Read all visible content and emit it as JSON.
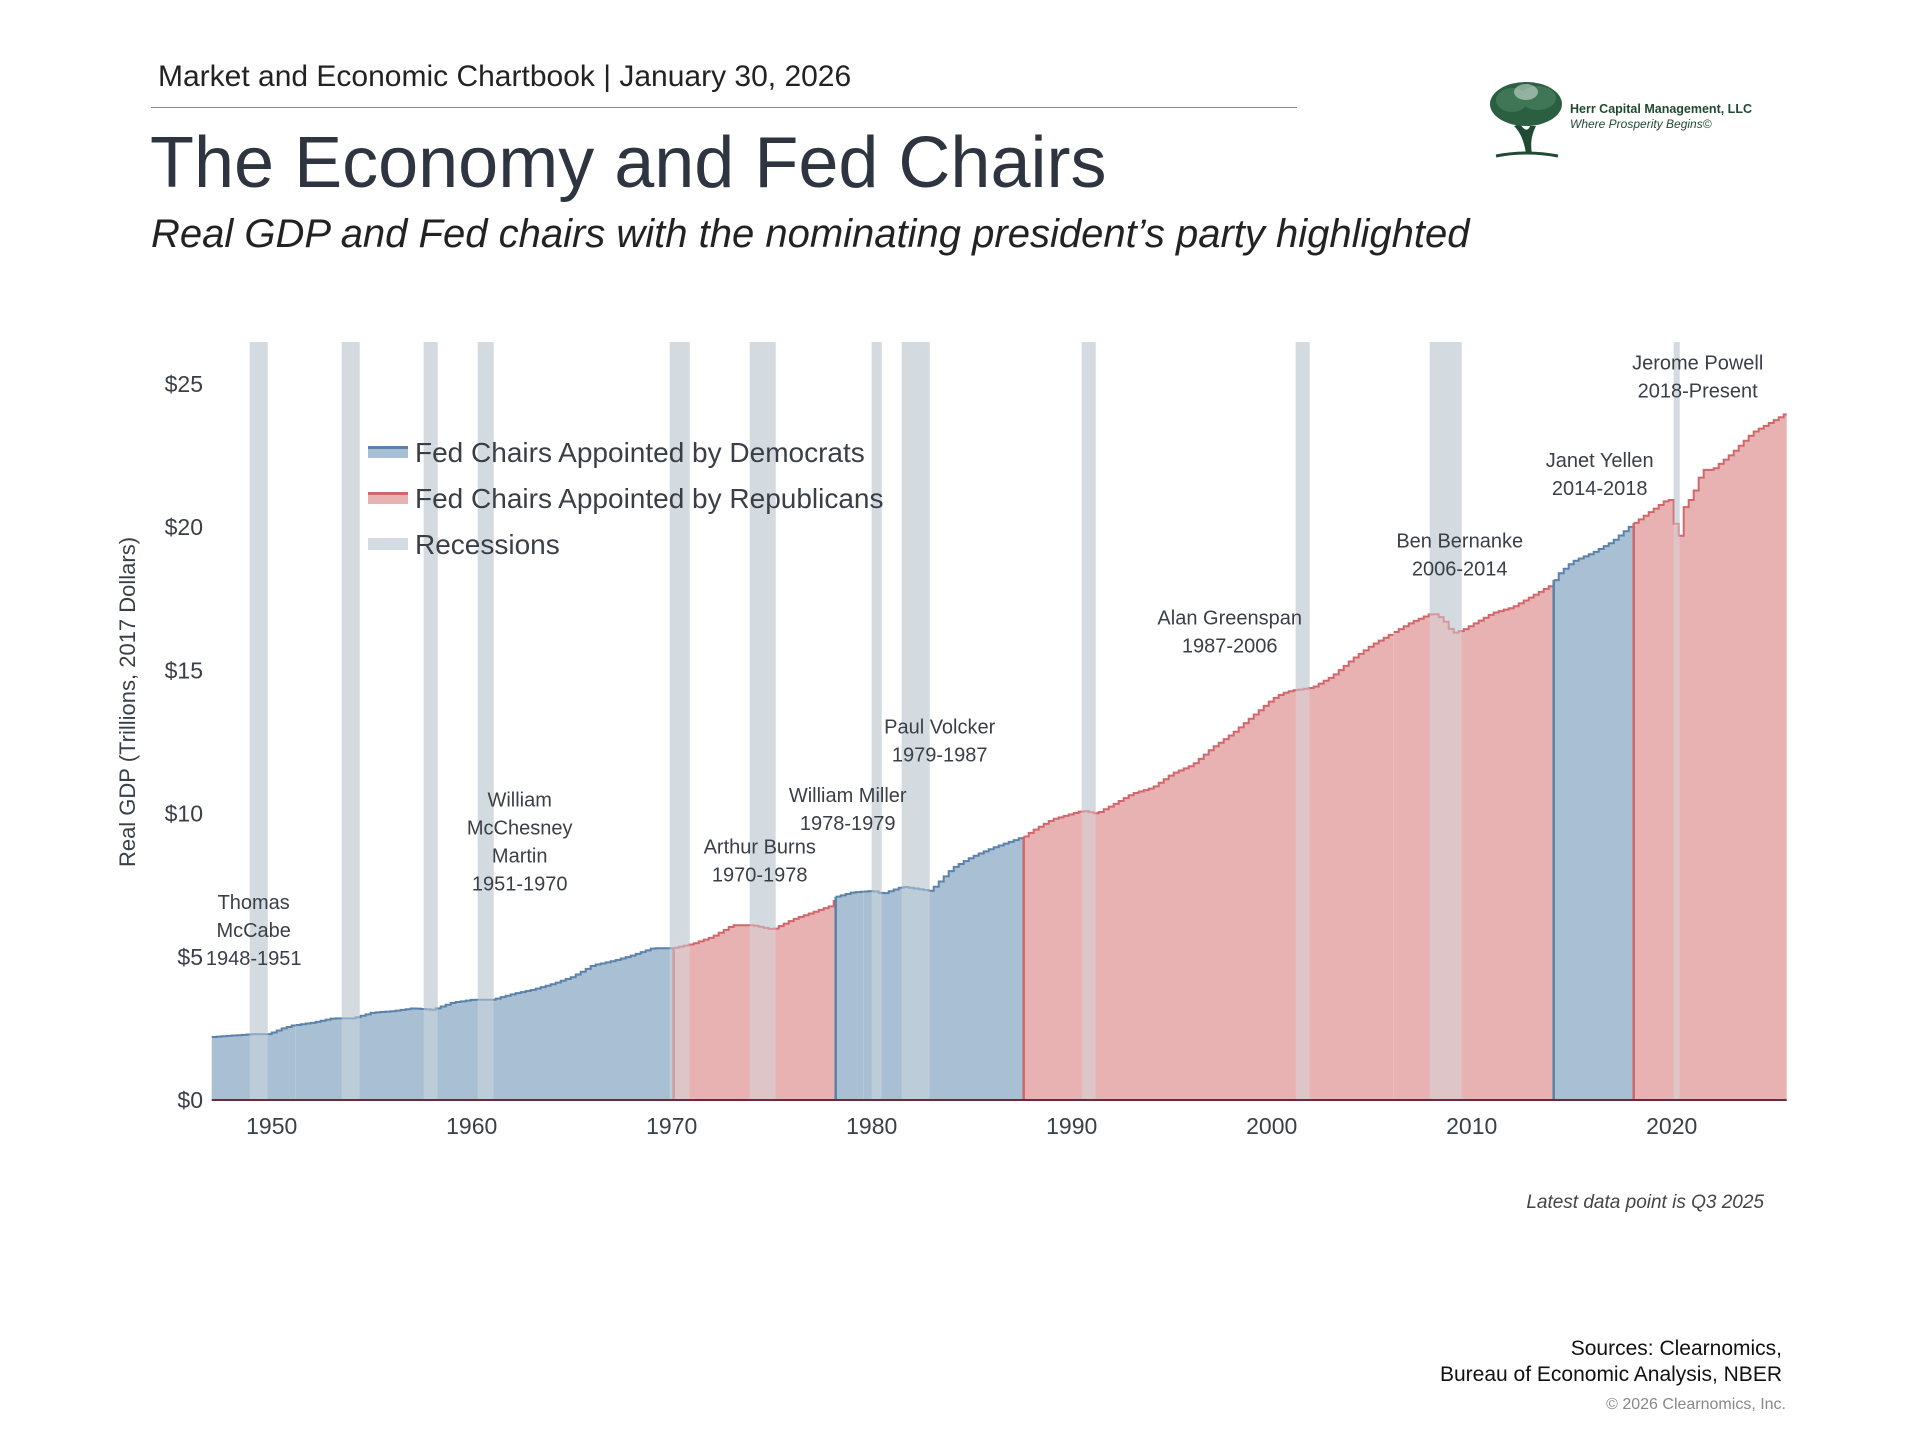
{
  "header": {
    "kicker": "Market and Economic Chartbook | January 30, 2026",
    "title": "The Economy and Fed Chairs",
    "subtitle": "Real GDP and Fed chairs with the nominating president’s party highlighted"
  },
  "logo": {
    "name": "Herr Capital Management, LLC",
    "tagline": "Where Prosperity Begins©",
    "icon": "tree-icon"
  },
  "chart_data": {
    "type": "area",
    "ylabel": "Real GDP (Trillions, 2017 Dollars)",
    "xlim": [
      1947,
      2025.75
    ],
    "ylim": [
      0,
      26
    ],
    "y_ticks": [
      0,
      5,
      10,
      15,
      20,
      25
    ],
    "y_tick_labels": [
      "$0",
      "$5",
      "$10",
      "$15",
      "$20",
      "$25"
    ],
    "x_ticks": [
      1950,
      1960,
      1970,
      1980,
      1990,
      2000,
      2010,
      2020
    ],
    "x_tick_labels": [
      "1950",
      "1960",
      "1970",
      "1980",
      "1990",
      "2000",
      "2010",
      "2020"
    ],
    "grid": false,
    "legend": {
      "placement": "top-left",
      "entries": [
        {
          "label": "Fed Chairs Appointed by Democrats",
          "party": "D"
        },
        {
          "label": "Fed Chairs Appointed by Republicans",
          "party": "R"
        },
        {
          "label": "Recessions",
          "party": "recession"
        }
      ]
    },
    "colors": {
      "D_fill": "#a9c0d4",
      "D_line": "#5a82aa",
      "R_fill": "#e8b2b2",
      "R_line": "#d0676b",
      "recession": "#d3dbe0"
    },
    "gdp": [
      [
        1947,
        2.2
      ],
      [
        1948,
        2.25
      ],
      [
        1949,
        2.3
      ],
      [
        1949.8,
        2.3
      ],
      [
        1950.5,
        2.5
      ],
      [
        1951,
        2.6
      ],
      [
        1952,
        2.7
      ],
      [
        1953,
        2.85
      ],
      [
        1954,
        2.85
      ],
      [
        1955,
        3.05
      ],
      [
        1956,
        3.1
      ],
      [
        1957,
        3.2
      ],
      [
        1958,
        3.15
      ],
      [
        1959,
        3.4
      ],
      [
        1960,
        3.5
      ],
      [
        1961,
        3.5
      ],
      [
        1962,
        3.7
      ],
      [
        1963,
        3.85
      ],
      [
        1964,
        4.05
      ],
      [
        1965,
        4.3
      ],
      [
        1966,
        4.7
      ],
      [
        1967,
        4.85
      ],
      [
        1968,
        5.05
      ],
      [
        1969,
        5.3
      ],
      [
        1970,
        5.3
      ],
      [
        1971,
        5.45
      ],
      [
        1972,
        5.7
      ],
      [
        1973,
        6.1
      ],
      [
        1974,
        6.1
      ],
      [
        1975,
        5.95
      ],
      [
        1976,
        6.3
      ],
      [
        1977,
        6.55
      ],
      [
        1978,
        6.8
      ],
      [
        1978.2,
        7.1
      ],
      [
        1979,
        7.25
      ],
      [
        1980,
        7.3
      ],
      [
        1980.5,
        7.2
      ],
      [
        1981.5,
        7.45
      ],
      [
        1982.9,
        7.3
      ],
      [
        1984,
        8.1
      ],
      [
        1985,
        8.5
      ],
      [
        1986,
        8.8
      ],
      [
        1987.6,
        9.2
      ],
      [
        1988,
        9.4
      ],
      [
        1989,
        9.8
      ],
      [
        1990.5,
        10.1
      ],
      [
        1991.2,
        10.0
      ],
      [
        1992,
        10.3
      ],
      [
        1993,
        10.7
      ],
      [
        1994,
        10.9
      ],
      [
        1995,
        11.4
      ],
      [
        1996,
        11.7
      ],
      [
        1997,
        12.3
      ],
      [
        1998,
        12.8
      ],
      [
        1999,
        13.4
      ],
      [
        2000,
        14.0
      ],
      [
        2000.5,
        14.2
      ],
      [
        2001,
        14.3
      ],
      [
        2002,
        14.4
      ],
      [
        2003,
        14.8
      ],
      [
        2004,
        15.4
      ],
      [
        2005,
        15.9
      ],
      [
        2006,
        16.3
      ],
      [
        2007,
        16.7
      ],
      [
        2008,
        17.0
      ],
      [
        2008.5,
        16.8
      ],
      [
        2009,
        16.3
      ],
      [
        2009.5,
        16.4
      ],
      [
        2010,
        16.6
      ],
      [
        2011,
        17.0
      ],
      [
        2012,
        17.2
      ],
      [
        2013,
        17.6
      ],
      [
        2014,
        18.0
      ],
      [
        2014.2,
        18.3
      ],
      [
        2015,
        18.8
      ],
      [
        2016,
        19.1
      ],
      [
        2017,
        19.5
      ],
      [
        2018,
        20.1
      ],
      [
        2019,
        20.6
      ],
      [
        2019.8,
        21.0
      ],
      [
        2020,
        20.8
      ],
      [
        2020.25,
        19.1
      ],
      [
        2020.5,
        20.6
      ],
      [
        2021,
        21.1
      ],
      [
        2021.5,
        22.0
      ],
      [
        2022,
        22.0
      ],
      [
        2023,
        22.6
      ],
      [
        2024,
        23.3
      ],
      [
        2025,
        23.7
      ],
      [
        2025.75,
        24.0
      ]
    ],
    "chairs": [
      {
        "name": [
          "Thomas",
          "McCabe"
        ],
        "term": "1948-1951",
        "party": "D",
        "start": 1947,
        "end": 1951.2,
        "label_x": 1949.1,
        "label_y": 5.0
      },
      {
        "name": [
          "William",
          "McChesney",
          "Martin"
        ],
        "term": "1951-1970",
        "party": "D",
        "start": 1951.2,
        "end": 1970.1,
        "label_x": 1962.4,
        "label_y": 7.6
      },
      {
        "name": [
          "Arthur Burns"
        ],
        "term": "1970-1978",
        "party": "R",
        "start": 1970.1,
        "end": 1978.2,
        "label_x": 1974.4,
        "label_y": 7.9
      },
      {
        "name": [
          "William Miller"
        ],
        "term": "1978-1979",
        "party": "D",
        "start": 1978.2,
        "end": 1979.6,
        "label_x": 1978.8,
        "label_y": 9.7
      },
      {
        "name": [
          "Paul Volcker"
        ],
        "term": "1979-1987",
        "party": "D",
        "start": 1979.6,
        "end": 1987.6,
        "label_x": 1983.4,
        "label_y": 12.1
      },
      {
        "name": [
          "Alan Greenspan"
        ],
        "term": "1987-2006",
        "party": "R",
        "start": 1987.6,
        "end": 2006.1,
        "label_x": 1997.9,
        "label_y": 15.9
      },
      {
        "name": [
          "Ben Bernanke"
        ],
        "term": "2006-2014",
        "party": "R",
        "start": 2006.1,
        "end": 2014.1,
        "label_x": 2009.4,
        "label_y": 18.6
      },
      {
        "name": [
          "Janet Yellen"
        ],
        "term": "2014-2018",
        "party": "D",
        "start": 2014.1,
        "end": 2018.1,
        "label_x": 2016.4,
        "label_y": 21.4
      },
      {
        "name": [
          "Jerome Powell"
        ],
        "term": "2018-Present",
        "party": "R",
        "start": 2018.1,
        "end": 2025.75,
        "label_x": 2021.3,
        "label_y": 24.8
      }
    ],
    "recessions": [
      [
        1948.9,
        1949.8
      ],
      [
        1953.5,
        1954.4
      ],
      [
        1957.6,
        1958.3
      ],
      [
        1960.3,
        1961.1
      ],
      [
        1969.9,
        1970.9
      ],
      [
        1973.9,
        1975.2
      ],
      [
        1980.0,
        1980.5
      ],
      [
        1981.5,
        1982.9
      ],
      [
        1990.5,
        1991.2
      ],
      [
        2001.2,
        2001.9
      ],
      [
        2007.9,
        2009.5
      ],
      [
        2020.1,
        2020.4
      ]
    ]
  },
  "footer": {
    "note": "Latest data point is Q3 2025",
    "sources_line1": "Sources: Clearnomics,",
    "sources_line2": "Bureau of Economic Analysis, NBER",
    "copyright": "© 2026 Clearnomics, Inc."
  }
}
